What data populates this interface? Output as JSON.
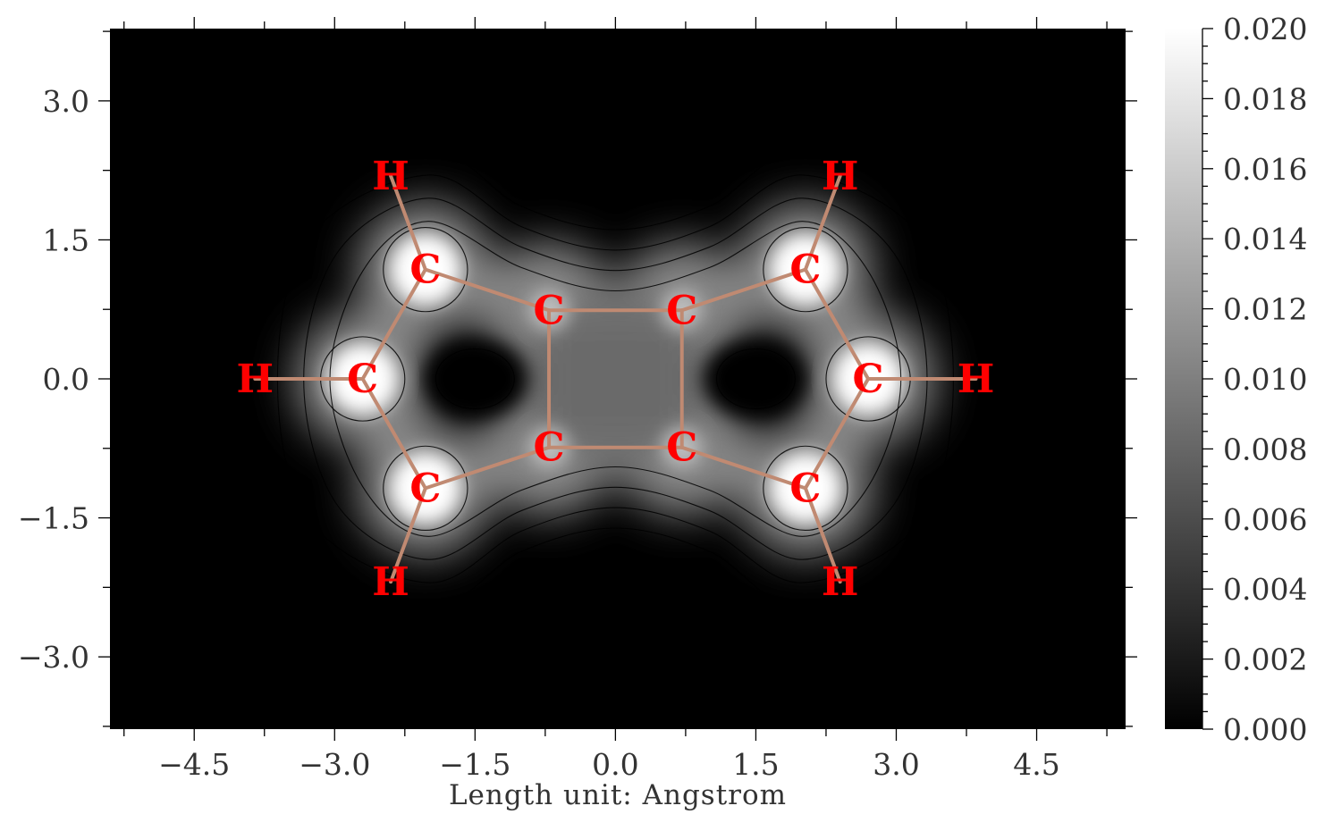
{
  "chart_data": {
    "type": "heatmap",
    "title": "",
    "xlabel": "Length unit: Angstrom",
    "ylabel": "",
    "xlim": [
      -5.4,
      5.45
    ],
    "ylim": [
      -3.78,
      3.78
    ],
    "xticks": [
      -4.5,
      -3.0,
      -1.5,
      0.0,
      1.5,
      3.0,
      4.5
    ],
    "xtick_labels": [
      "−4.5",
      "−3.0",
      "−1.5",
      "0.0",
      "1.5",
      "3.0",
      "4.5"
    ],
    "yticks": [
      3.0,
      1.5,
      0.0,
      -1.5,
      -3.0
    ],
    "ytick_labels": [
      "3.0",
      "1.5",
      "0.0",
      "−1.5",
      "−3.0"
    ],
    "colorbar": {
      "range": [
        0.0,
        0.02
      ],
      "colormap": "grayscale black-to-white",
      "ticks": [
        0.02,
        0.018,
        0.016,
        0.014,
        0.012,
        0.01,
        0.008,
        0.006,
        0.004,
        0.002,
        0.0
      ],
      "tick_labels": [
        "0.020",
        "0.018",
        "0.016",
        "0.014",
        "0.012",
        "0.010",
        "0.008",
        "0.006",
        "0.004",
        "0.002",
        "0.000"
      ]
    },
    "grid": false,
    "contour_lines": true,
    "atoms": [
      {
        "element": "C",
        "label": "C",
        "x": -0.71,
        "y": 0.74
      },
      {
        "element": "C",
        "label": "C",
        "x": 0.71,
        "y": 0.74
      },
      {
        "element": "C",
        "label": "C",
        "x": -0.71,
        "y": -0.74
      },
      {
        "element": "C",
        "label": "C",
        "x": 0.71,
        "y": -0.74
      },
      {
        "element": "C",
        "label": "C",
        "x": -2.03,
        "y": 1.18
      },
      {
        "element": "C",
        "label": "C",
        "x": 2.03,
        "y": 1.18
      },
      {
        "element": "C",
        "label": "C",
        "x": -2.03,
        "y": -1.18
      },
      {
        "element": "C",
        "label": "C",
        "x": 2.03,
        "y": -1.18
      },
      {
        "element": "C",
        "label": "C",
        "x": -2.7,
        "y": 0.0
      },
      {
        "element": "C",
        "label": "C",
        "x": 2.7,
        "y": 0.0
      },
      {
        "element": "H",
        "label": "H",
        "x": -2.4,
        "y": 2.19
      },
      {
        "element": "H",
        "label": "H",
        "x": 2.4,
        "y": 2.19
      },
      {
        "element": "H",
        "label": "H",
        "x": -2.4,
        "y": -2.19
      },
      {
        "element": "H",
        "label": "H",
        "x": 2.4,
        "y": -2.19
      },
      {
        "element": "H",
        "label": "H",
        "x": -3.85,
        "y": 0.0
      },
      {
        "element": "H",
        "label": "H",
        "x": 3.85,
        "y": 0.0
      }
    ],
    "bonds": [
      [
        0,
        1
      ],
      [
        2,
        3
      ],
      [
        0,
        2
      ],
      [
        1,
        3
      ],
      [
        0,
        4
      ],
      [
        4,
        8
      ],
      [
        8,
        6
      ],
      [
        6,
        2
      ],
      [
        1,
        5
      ],
      [
        5,
        9
      ],
      [
        9,
        7
      ],
      [
        7,
        3
      ],
      [
        4,
        10
      ],
      [
        5,
        11
      ],
      [
        6,
        12
      ],
      [
        7,
        13
      ],
      [
        8,
        14
      ],
      [
        9,
        15
      ]
    ]
  }
}
